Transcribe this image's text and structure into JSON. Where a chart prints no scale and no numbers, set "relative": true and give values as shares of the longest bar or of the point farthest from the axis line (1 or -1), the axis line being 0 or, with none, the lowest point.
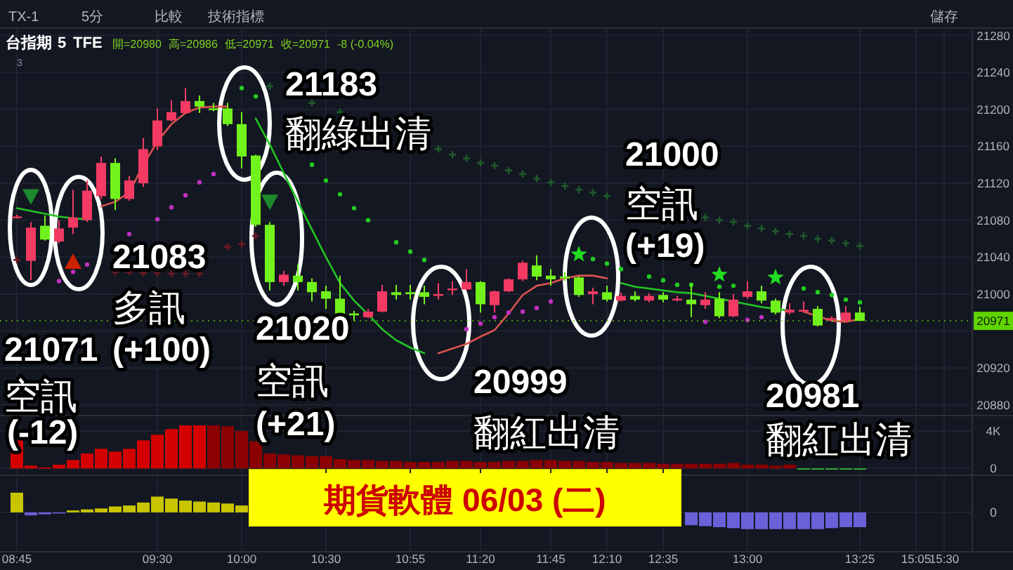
{
  "chart_data": [
    {
      "type": "candlestick",
      "ohlc": [
        [
          21084,
          21086,
          21082,
          21084
        ],
        [
          21036,
          21078,
          21015,
          21072
        ],
        [
          21074,
          21085,
          21058,
          21059
        ],
        [
          21057,
          21080,
          21055,
          21071
        ],
        [
          21072,
          21113,
          21065,
          21083
        ],
        [
          21080,
          21123,
          21078,
          21112
        ],
        [
          21106,
          21149,
          21103,
          21142
        ],
        [
          21142,
          21147,
          21091,
          21103
        ],
        [
          21103,
          21128,
          21101,
          21123
        ],
        [
          21120,
          21169,
          21116,
          21157
        ],
        [
          21160,
          21201,
          21156,
          21188
        ],
        [
          21188,
          21210,
          21187,
          21197
        ],
        [
          21196,
          21223,
          21195,
          21209
        ],
        [
          21209,
          21215,
          21196,
          21203
        ],
        [
          21201,
          21207,
          21198,
          21200
        ],
        [
          21201,
          21207,
          21182,
          21184
        ],
        [
          21184,
          21197,
          21136,
          21149
        ],
        [
          21150,
          21151,
          21073,
          21075
        ],
        [
          21075,
          21078,
          21004,
          21013
        ],
        [
          21013,
          21025,
          21009,
          21021
        ],
        [
          21020,
          21032,
          21004,
          21013
        ],
        [
          21013,
          21017,
          20992,
          21002
        ],
        [
          21003,
          21009,
          20984,
          20995
        ],
        [
          20995,
          21020,
          20973,
          20974
        ],
        [
          20979,
          20982,
          20971,
          20977
        ],
        [
          20975,
          20984,
          20974,
          20981
        ],
        [
          20981,
          21010,
          20980,
          21003
        ],
        [
          21002,
          21010,
          20994,
          20999
        ],
        [
          21002,
          21010,
          20994,
          21000
        ],
        [
          21002,
          21009,
          20989,
          20997
        ],
        [
          20998,
          21012,
          20994,
          21000
        ],
        [
          21005,
          21014,
          20999,
          21006
        ],
        [
          21005,
          21027,
          21004,
          21013
        ],
        [
          21013,
          21014,
          20980,
          20989
        ],
        [
          20988,
          21004,
          20980,
          21003
        ],
        [
          21003,
          21017,
          21002,
          21016
        ],
        [
          21016,
          21036,
          21014,
          21034
        ],
        [
          21031,
          21042,
          21015,
          21019
        ],
        [
          21020,
          21027,
          21009,
          21016
        ],
        [
          21019,
          21024,
          21014,
          21017
        ],
        [
          21018,
          21019,
          20997,
          20999
        ],
        [
          21000,
          21007,
          20989,
          21003
        ],
        [
          21002,
          21009,
          20992,
          20994
        ],
        [
          20993,
          21002,
          20992,
          20998
        ],
        [
          20998,
          21003,
          20992,
          20994
        ],
        [
          20993,
          21001,
          20991,
          20998
        ],
        [
          20999,
          21002,
          20991,
          20994
        ],
        [
          20994,
          20998,
          20992,
          20995
        ],
        [
          20994,
          21012,
          20975,
          20989
        ],
        [
          20988,
          21002,
          20984,
          20994
        ],
        [
          20995,
          21002,
          20974,
          20976
        ],
        [
          20976,
          21000,
          20975,
          20994
        ],
        [
          20997,
          21014,
          20995,
          21003
        ],
        [
          21003,
          21009,
          20990,
          20993
        ],
        [
          20993,
          20995,
          20978,
          20980
        ],
        [
          20980,
          20990,
          20978,
          20983
        ],
        [
          20981,
          20992,
          20980,
          20983
        ],
        [
          20984,
          20987,
          20965,
          20966
        ],
        [
          20973,
          20976,
          20971,
          20974
        ],
        [
          20970,
          20987,
          20969,
          20980
        ],
        [
          20980,
          20986,
          20971,
          20971
        ],
        null,
        null,
        null,
        null,
        null,
        null
      ],
      "colors": [
        "#f23a63",
        "#f23a63",
        "#72f21c",
        "#f23a63",
        "#f23a63",
        "#f23a63",
        "#f23a63",
        "#72f21c",
        "#f23a63",
        "#f23a63",
        "#f23a63",
        "#f23a63",
        "#f23a63",
        "#72f21c",
        "#72f21c",
        "#72f21c",
        "#72f21c",
        "#72f21c",
        "#72f21c",
        "#f23a63",
        "#72f21c",
        "#72f21c",
        "#72f21c",
        "#72f21c",
        "#72f21c",
        "#f23a63",
        "#f23a63",
        "#72f21c",
        "#72f21c",
        "#72f21c",
        "#f23a63",
        "#f23a63",
        "#f23a63",
        "#72f21c",
        "#f23a63",
        "#f23a63",
        "#f23a63",
        "#72f21c",
        "#72f21c",
        "#72f21c",
        "#72f21c",
        "#f23a63",
        "#72f21c",
        "#f23a63",
        "#72f21c",
        "#f23a63",
        "#72f21c",
        "#f23a63",
        "#72f21c",
        "#f23a63",
        "#72f21c",
        "#f23a63",
        "#f23a63",
        "#72f21c",
        "#72f21c",
        "#f23a63",
        "#f23a63",
        "#72f21c",
        "#f23a63",
        "#f23a63",
        "#72f21c",
        null,
        null,
        null,
        null,
        null,
        null
      ],
      "series": [
        {
          "type": "line",
          "color": "#d9534f",
          "values": [
            null,
            null,
            null,
            null,
            null,
            null,
            21095,
            21100,
            21110,
            21140,
            21165,
            21184,
            21196,
            21202,
            21203,
            21203,
            null,
            null,
            null,
            null,
            null,
            null,
            null,
            null,
            null,
            null,
            null,
            null,
            null,
            null,
            20936,
            20941,
            20946,
            20954,
            20961,
            20979,
            20999,
            21009,
            21012,
            21017,
            21020,
            21020,
            21017,
            null,
            null,
            null,
            null,
            null,
            null,
            null,
            null,
            null,
            null,
            null,
            null,
            null,
            20981,
            20976,
            20971,
            20970,
            20973,
            null,
            null,
            null,
            null,
            null,
            null
          ]
        },
        {
          "type": "line",
          "color": "#22c422",
          "values": [
            21093,
            21090,
            21087,
            21084,
            21082,
            21081,
            null,
            null,
            null,
            null,
            null,
            null,
            null,
            null,
            null,
            null,
            null,
            21190,
            21162,
            21131,
            21100,
            21070,
            21040,
            21012,
            20993,
            20978,
            20962,
            20950,
            20942,
            20936,
            null,
            null,
            null,
            null,
            null,
            null,
            null,
            null,
            null,
            null,
            null,
            null,
            null,
            21012,
            21008,
            21006,
            21004,
            21002,
            21001,
            20998,
            20995,
            20992,
            20989,
            20986,
            20984,
            20982,
            null,
            null,
            null,
            null,
            null,
            null,
            null,
            null,
            null,
            null,
            null
          ]
        },
        {
          "type": "scatter",
          "marker": "circle",
          "color": "#c030c0",
          "values": [
            null,
            null,
            null,
            21014,
            21024,
            21032,
            null,
            null,
            21065,
            null,
            21081,
            21094,
            21107,
            21121,
            21130,
            null,
            null,
            null,
            null,
            null,
            null,
            null,
            null,
            null,
            null,
            null,
            null,
            null,
            null,
            null,
            null,
            null,
            20962,
            20968,
            20975,
            20980,
            20981,
            20985,
            20992,
            null,
            null,
            null,
            null,
            null,
            null,
            null,
            null,
            null,
            null,
            20970,
            null,
            null,
            20972,
            20975,
            null,
            null,
            null,
            null,
            null,
            null,
            null,
            null,
            null,
            null,
            null,
            null,
            null
          ]
        },
        {
          "type": "scatter",
          "marker": "circle",
          "color": "#22cc22",
          "values": [
            null,
            null,
            null,
            null,
            null,
            null,
            null,
            null,
            null,
            null,
            null,
            null,
            null,
            null,
            null,
            null,
            21223,
            21214,
            null,
            null,
            null,
            21140,
            21123,
            21108,
            21093,
            21080,
            null,
            21056,
            21046,
            21037,
            null,
            null,
            null,
            null,
            null,
            null,
            null,
            null,
            null,
            null,
            null,
            21038,
            21033,
            21027,
            null,
            21019,
            21015,
            21010,
            21010,
            null,
            21008,
            21009,
            null,
            null,
            null,
            null,
            21006,
            21002,
            20999,
            20994,
            20991,
            null,
            null,
            null,
            null,
            null,
            null
          ]
        },
        {
          "type": "scatter",
          "marker": "cross",
          "color": "#1f5a2a",
          "values": [
            null,
            null,
            null,
            null,
            null,
            null,
            null,
            null,
            null,
            null,
            null,
            null,
            null,
            null,
            null,
            null,
            null,
            null,
            21225,
            null,
            null,
            21207,
            null,
            21197,
            null,
            null,
            null,
            null,
            null,
            null,
            21157,
            21151,
            21147,
            21142,
            21139,
            21134,
            21130,
            21125,
            21121,
            21117,
            21113,
            21110,
            21106,
            null,
            null,
            null,
            null,
            null,
            null,
            21083,
            21080,
            21078,
            21074,
            21071,
            21068,
            21065,
            21063,
            21060,
            21058,
            21055,
            21052,
            null,
            null,
            null,
            null,
            null,
            null
          ]
        },
        {
          "type": "scatter",
          "marker": "cross",
          "color": "#6b1a22",
          "values": [
            21037,
            null,
            null,
            null,
            null,
            null,
            null,
            21024,
            21024,
            21023,
            21023,
            21022,
            21022,
            21022,
            null,
            21051,
            21054,
            21063,
            null,
            null,
            null,
            null,
            null,
            null,
            null,
            null,
            null,
            null,
            null,
            null,
            null,
            null,
            null,
            null,
            null,
            null,
            null,
            null,
            null,
            null,
            null,
            null,
            null,
            null,
            null,
            null,
            null,
            null,
            null,
            null,
            null,
            null,
            null,
            null,
            null,
            null,
            null,
            null,
            null,
            null,
            null,
            null,
            null,
            null,
            null,
            null,
            null
          ]
        },
        {
          "type": "scatter",
          "marker": "triangle-down",
          "color": "#1e8a2e",
          "values": [
            null,
            21106,
            null,
            null,
            null,
            null,
            null,
            null,
            null,
            null,
            null,
            null,
            null,
            null,
            null,
            null,
            null,
            null,
            21100,
            null,
            null,
            null,
            null,
            null,
            null,
            null,
            null,
            null,
            null,
            null,
            null,
            null,
            null,
            null,
            null,
            null,
            null,
            null,
            null,
            null,
            null,
            null,
            null,
            null,
            null,
            null,
            null,
            null,
            null,
            null,
            null,
            null,
            null,
            null,
            null,
            null,
            null,
            null,
            null,
            null,
            null,
            null,
            null,
            null,
            null,
            null,
            null
          ]
        },
        {
          "type": "scatter",
          "marker": "triangle",
          "color": "#cc2200",
          "values": [
            null,
            null,
            null,
            null,
            21035,
            null,
            null,
            null,
            null,
            null,
            null,
            null,
            null,
            null,
            null,
            null,
            null,
            null,
            null,
            null,
            null,
            null,
            null,
            null,
            null,
            null,
            null,
            null,
            null,
            null,
            null,
            null,
            null,
            null,
            null,
            null,
            null,
            null,
            null,
            null,
            null,
            null,
            null,
            null,
            null,
            null,
            null,
            null,
            null,
            null,
            null,
            null,
            null,
            null,
            null,
            null,
            null,
            null,
            null,
            null,
            null,
            null,
            null,
            null,
            null,
            null,
            null
          ]
        },
        {
          "type": "scatter",
          "marker": "star",
          "color": "#22dd22",
          "values": [
            null,
            null,
            null,
            null,
            null,
            null,
            null,
            null,
            null,
            null,
            null,
            null,
            null,
            null,
            null,
            null,
            null,
            null,
            null,
            null,
            null,
            null,
            null,
            null,
            null,
            null,
            null,
            null,
            null,
            null,
            null,
            null,
            null,
            null,
            null,
            null,
            null,
            null,
            null,
            null,
            21043,
            null,
            null,
            null,
            null,
            null,
            null,
            null,
            null,
            null,
            21021,
            null,
            null,
            null,
            21018,
            null,
            null,
            null,
            null,
            null,
            null,
            null,
            null,
            null,
            null,
            null,
            null
          ]
        }
      ],
      "ylim": [
        20870,
        21288
      ],
      "yticks": [
        20880,
        20920,
        {
          "value": 20960,
          "label": null
        },
        21000,
        21040,
        21080,
        21120,
        21160,
        21200,
        21240,
        21280
      ],
      "tick_labels": "y",
      "grid": true,
      "ref_lines": [
        {
          "axis": "y",
          "value": 20971,
          "label": "20971",
          "color": "#5fd400",
          "line_style": "dotted"
        }
      ],
      "annotations": [
        "TX-1",
        "5分",
        "比較",
        "技術指標",
        "儲存",
        "台指期",
        "5",
        "TFE",
        "開=20980",
        "高=20986",
        "低=20971",
        "收=20971",
        "-8 (-0.04%)",
        "3",
        "21071 空訊 (-12)",
        "21083 多訊 (+100)",
        "21183 翻綠出清",
        "21020 空訊 (+21)",
        "20999 翻紅出清",
        "21000 空訊 (+19)",
        "20981 翻紅出清"
      ]
    },
    {
      "type": "bar",
      "values": [
        3100,
        300,
        100,
        400,
        900,
        1600,
        2100,
        1800,
        2100,
        3000,
        3600,
        4200,
        4600,
        4600,
        4600,
        4500,
        4000,
        2900,
        1600,
        1500,
        1400,
        1300,
        1300,
        1000,
        900,
        900,
        800,
        800,
        700,
        700,
        700,
        800,
        800,
        700,
        700,
        800,
        800,
        900,
        900,
        800,
        800,
        700,
        700,
        600,
        600,
        600,
        500,
        500,
        500,
        500,
        500,
        600,
        400,
        400,
        300,
        400,
        -100,
        -100,
        -100,
        -100,
        -100,
        null,
        null,
        null,
        null,
        null,
        null
      ],
      "colors": [
        "#d40000",
        "#d40000",
        "#d40000",
        "#d40000",
        "#d40000",
        "#d40000",
        "#d40000",
        "#d40000",
        "#d40000",
        "#d40000",
        "#d40000",
        "#d40000",
        "#d40000",
        "#d40000",
        "#8b0000",
        "#8b0000",
        "#8b0000",
        "#8b0000",
        "#8b0000",
        "#8b0000",
        "#8b0000",
        "#8b0000",
        "#8b0000",
        "#8b0000",
        "#8b0000",
        "#8b0000",
        "#8b0000",
        "#8b0000",
        "#8b0000",
        "#8b0000",
        "#8b0000",
        "#8b0000",
        "#8b0000",
        "#8b0000",
        "#8b0000",
        "#8b0000",
        "#8b0000",
        "#8b0000",
        "#8b0000",
        "#8b0000",
        "#8b0000",
        "#8b0000",
        "#8b0000",
        "#8b0000",
        "#8b0000",
        "#8b0000",
        "#8b0000",
        "#8b0000",
        "#8b0000",
        "#8b0000",
        "#8b0000",
        "#8b0000",
        "#8b0000",
        "#8b0000",
        "#8b0000",
        "#8b0000",
        "#33cc33",
        "#33cc33",
        "#33cc33",
        "#33cc33",
        "#33cc33",
        null,
        null,
        null,
        null,
        null,
        null
      ],
      "ylim": [
        -500,
        5500
      ],
      "yticks": [
        {
          "value": 4000,
          "label": "4K"
        },
        0
      ],
      "tick_labels": "y",
      "grid": true
    },
    {
      "type": "bar",
      "relative": true,
      "title": "期貨軟體 06/03 (二)",
      "categories": [
        "08:45",
        null,
        null,
        null,
        null,
        null,
        null,
        null,
        null,
        null,
        "09:30",
        null,
        null,
        null,
        null,
        null,
        "10:00",
        null,
        null,
        null,
        null,
        null,
        "10:30",
        null,
        null,
        null,
        null,
        null,
        "10:55",
        null,
        null,
        null,
        null,
        "11:20",
        null,
        null,
        null,
        null,
        "11:45",
        null,
        null,
        null,
        "12:10",
        null,
        null,
        null,
        "12:35",
        null,
        null,
        null,
        null,
        null,
        "13:00",
        null,
        null,
        null,
        null,
        null,
        null,
        null,
        "13:25",
        null,
        null,
        null,
        "15:05",
        null,
        "15:30"
      ],
      "series": [
        {
          "color": "#c8c400",
          "values": [
            1,
            null,
            null,
            null,
            0.1,
            0.15,
            0.2,
            0.3,
            0.35,
            0.5,
            0.8,
            0.7,
            0.6,
            0.55,
            0.5,
            0.45,
            0.35,
            null,
            null,
            null,
            null,
            null,
            null,
            null,
            null,
            null,
            null,
            null,
            null,
            null,
            null,
            null,
            null,
            null,
            null,
            null,
            null,
            null,
            null,
            null,
            null,
            null,
            null,
            null,
            null,
            null,
            null,
            null,
            null,
            null,
            null,
            null,
            null,
            null,
            null,
            null,
            null,
            null,
            null,
            null,
            null,
            null,
            null,
            null,
            null,
            null,
            null
          ]
        },
        {
          "color": "#6a60d8",
          "values": [
            null,
            -0.15,
            -0.1,
            -0.05,
            null,
            null,
            null,
            null,
            null,
            null,
            null,
            null,
            null,
            null,
            null,
            null,
            null,
            null,
            null,
            null,
            null,
            null,
            null,
            null,
            null,
            null,
            null,
            null,
            null,
            null,
            null,
            null,
            null,
            null,
            null,
            null,
            null,
            null,
            null,
            null,
            null,
            null,
            null,
            null,
            null,
            null,
            null,
            null,
            -0.65,
            -0.7,
            -0.75,
            -0.8,
            -0.85,
            -0.85,
            -0.85,
            -0.85,
            -0.85,
            -0.85,
            -0.8,
            -0.75,
            -0.75,
            null,
            null,
            null,
            null,
            null,
            null
          ]
        }
      ],
      "tick_labels": "x",
      "grid": "x",
      "annotations": [
        "0"
      ]
    }
  ]
}
